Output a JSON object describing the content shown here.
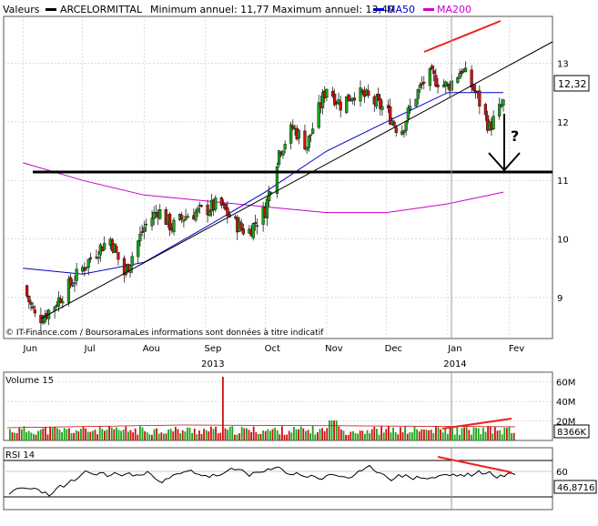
{
  "header": {
    "valeurs_label": "Valeurs",
    "series_name": "ARCELORMITTAL",
    "range_text": "Minimum annuel: 11,77 Maximum annuel: 13,40",
    "ma50_label": "MA50",
    "ma200_label": "MA200"
  },
  "colors": {
    "candle_up": "#1aa31a",
    "candle_down": "#cc1111",
    "ma50": "#0000cc",
    "ma200": "#cc00cc",
    "trend_red": "#ee2222",
    "grid": "#b8b8b8",
    "price_tag_bg": "#ffffff"
  },
  "source_text": "© IT-Finance.com / BoursoramaLes informations sont données à titre indicatif",
  "price_tag": "12,32",
  "question_mark": "?",
  "x_axis": {
    "months": [
      "Jun",
      "Jul",
      "Aou",
      "Sep",
      "Oct",
      "Nov",
      "Dec",
      "Jan",
      "Fev"
    ],
    "years": [
      "2013",
      "2014"
    ]
  },
  "volume_panel": {
    "label": "Volume 15",
    "ticks": [
      "60M",
      "40M",
      "20M"
    ],
    "current_tag": "8366K"
  },
  "rsi_panel": {
    "label": "RSI 14",
    "ticks": [
      "60"
    ],
    "current_tag": "46,8716"
  },
  "chart_data": {
    "type": "candlestick",
    "x_range": [
      "2013-06",
      "2014-02"
    ],
    "ylim": [
      8.3,
      13.8
    ],
    "y_ticks": [
      9,
      10,
      11,
      12,
      13
    ],
    "grid": true,
    "series": [
      {
        "name": "ARCELORMITTAL",
        "x": [
          "2013-06-01",
          "2013-06-08",
          "2013-06-15",
          "2013-06-22",
          "2013-07-01",
          "2013-07-08",
          "2013-07-15",
          "2013-07-22",
          "2013-08-01",
          "2013-08-08",
          "2013-08-15",
          "2013-08-22",
          "2013-09-01",
          "2013-09-08",
          "2013-09-15",
          "2013-09-22",
          "2013-10-01",
          "2013-10-08",
          "2013-10-15",
          "2013-10-22",
          "2013-11-01",
          "2013-11-08",
          "2013-11-15",
          "2013-11-22",
          "2013-12-01",
          "2013-12-08",
          "2013-12-15",
          "2013-12-22",
          "2014-01-01",
          "2014-01-08",
          "2014-01-15",
          "2014-01-22",
          "2014-01-29"
        ],
        "values": [
          9.2,
          8.6,
          8.8,
          9.1,
          9.5,
          9.8,
          10.0,
          9.4,
          10.2,
          10.5,
          10.2,
          10.4,
          10.5,
          10.6,
          10.3,
          10.1,
          10.5,
          11.5,
          11.9,
          11.6,
          12.6,
          12.3,
          12.5,
          12.4,
          12.2,
          11.8,
          12.4,
          12.8,
          12.6,
          12.9,
          12.5,
          11.9,
          12.32
        ]
      },
      {
        "name": "MA50",
        "x": [
          "2013-06-01",
          "2013-07-01",
          "2013-08-01",
          "2013-09-01",
          "2013-10-01",
          "2013-11-01",
          "2013-12-01",
          "2014-01-01",
          "2014-01-29"
        ],
        "values": [
          9.5,
          9.4,
          9.6,
          10.2,
          10.8,
          11.5,
          12.0,
          12.5,
          12.5
        ]
      },
      {
        "name": "MA200",
        "x": [
          "2013-06-01",
          "2013-07-01",
          "2013-08-01",
          "2013-09-01",
          "2013-10-01",
          "2013-11-01",
          "2013-12-01",
          "2014-01-01",
          "2014-01-29"
        ],
        "values": [
          11.3,
          11.0,
          10.75,
          10.65,
          10.55,
          10.45,
          10.45,
          10.6,
          10.8
        ]
      }
    ],
    "annotations": {
      "support_level": 10.7
    }
  }
}
